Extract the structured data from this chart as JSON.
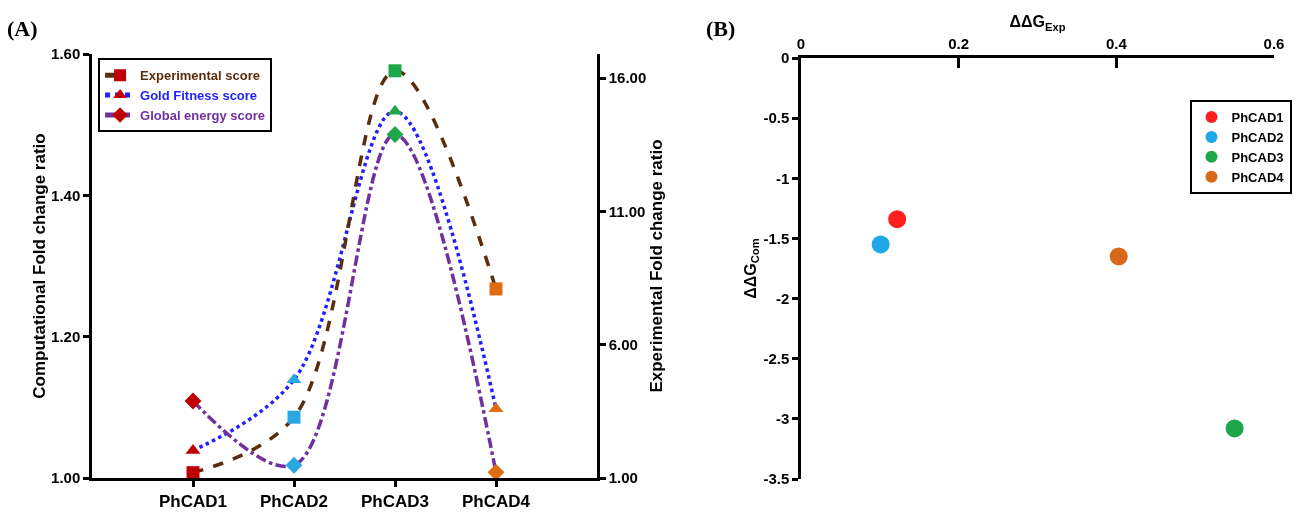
{
  "chart_data": [
    {
      "type": "line",
      "title": "(A)",
      "ylabel": "Computational Fold change ratio",
      "y2label": "Experimental Fold change ratio",
      "categories": [
        "PhCAD1",
        "PhCAD2",
        "PhCAD3",
        "PhCAD4"
      ],
      "series": [
        {
          "name": "Experimental score",
          "color": "#5a2d0c",
          "axis": "y2",
          "marker": "square",
          "line_style": "dashed",
          "values": [
            1.2,
            3.28,
            16.27,
            8.09
          ],
          "colors": [
            "#c00000",
            "#29a8e0",
            "#1fa54a",
            "#e06b10"
          ]
        },
        {
          "name": "Gold Fitness score",
          "color": "#1f1fff",
          "marker": "triangle",
          "line_style": "dotted",
          "values": [
            1.039,
            1.139,
            1.519,
            1.098
          ],
          "colors": [
            "#c00000",
            "#29a8e0",
            "#1fa54a",
            "#e06b10"
          ]
        },
        {
          "name": "Global energy score",
          "color": "#7030a0",
          "marker": "diamond",
          "line_style": "dashdot",
          "values": [
            1.109,
            1.018,
            1.486,
            1.008
          ],
          "colors": [
            "#c00000",
            "#29a8e0",
            "#1fa54a",
            "#e06b10"
          ]
        }
      ],
      "ylim": [
        1,
        1.6
      ],
      "yticks": [
        {
          "value": 1,
          "label": "1.00"
        },
        {
          "value": 1.2,
          "label": "1.20"
        },
        {
          "value": 1.4,
          "label": "1.40"
        },
        {
          "value": 1.6,
          "label": "1.60"
        }
      ],
      "y2lim": [
        1,
        16.9
      ],
      "y2ticks": [
        {
          "value": 1,
          "label": "1.00"
        },
        {
          "value": 6,
          "label": "6.00"
        },
        {
          "value": 11,
          "label": "11.00"
        },
        {
          "value": 16,
          "label": "16.00"
        }
      ],
      "legend": "top left"
    },
    {
      "type": "scatter",
      "title": "(B)",
      "xlabel": "ΔΔG$_{Exp}$",
      "ylabel": "ΔΔG$_{Com}$",
      "marker": "circle",
      "series": [
        {
          "name": "PhCAD1",
          "color": "#ff1f1f",
          "x": [
            0.122
          ],
          "values": [
            -1.34
          ]
        },
        {
          "name": "PhCAD2",
          "color": "#1fa8e8",
          "x": [
            0.101
          ],
          "values": [
            -1.55
          ]
        },
        {
          "name": "PhCAD3",
          "color": "#1fa54a",
          "x": [
            0.55
          ],
          "values": [
            -3.08
          ]
        },
        {
          "name": "PhCAD4",
          "color": "#d9691a",
          "x": [
            0.403
          ],
          "values": [
            -1.65
          ]
        }
      ],
      "xlim": [
        0,
        0.6
      ],
      "xticks": [
        0,
        0.2,
        0.4,
        0.6
      ],
      "ylim": [
        -3.5,
        0
      ],
      "yticks": [
        0,
        -0.5,
        -1,
        -1.5,
        -2,
        -2.5,
        -3,
        -3.5
      ],
      "legend": "top right"
    }
  ]
}
